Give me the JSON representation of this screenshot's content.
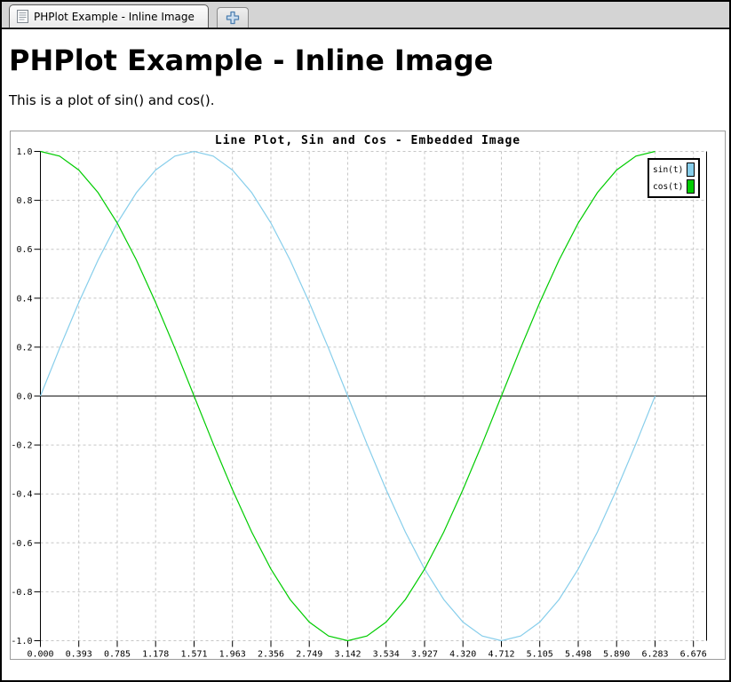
{
  "tabbar": {
    "tab_title": "PHPlot Example - Inline Image",
    "tab_icon": "document-icon",
    "new_tab_icon": "plus-icon"
  },
  "page": {
    "heading": "PHPlot Example - Inline Image",
    "intro": "This is a plot of sin() and cos()."
  },
  "chart_data": {
    "type": "line",
    "title": "Line Plot, Sin and Cos - Embedded Image",
    "xlabel": "",
    "ylabel": "",
    "xlim": [
      0,
      6.81
    ],
    "ylim": [
      -1,
      1
    ],
    "grid": true,
    "grid_style": "dashed",
    "legend_position": "top-right",
    "background_color": "#ffffff",
    "x": [
      0.0,
      0.1963,
      0.3927,
      0.589,
      0.7854,
      0.9817,
      1.1781,
      1.3744,
      1.5708,
      1.7671,
      1.9635,
      2.1598,
      2.3562,
      2.5525,
      2.7489,
      2.9452,
      3.1416,
      3.3379,
      3.5343,
      3.7306,
      3.927,
      4.1233,
      4.3197,
      4.516,
      4.7124,
      4.9087,
      5.1051,
      5.3014,
      5.4978,
      5.6941,
      5.8905,
      6.0868,
      6.2832
    ],
    "series": [
      {
        "name": "sin(t)",
        "color": "#87CEEB",
        "values": [
          0.0,
          0.1951,
          0.3827,
          0.5556,
          0.7071,
          0.8315,
          0.9239,
          0.9808,
          1.0,
          0.9808,
          0.9239,
          0.8315,
          0.7071,
          0.5556,
          0.3827,
          0.1951,
          0.0,
          -0.1951,
          -0.3827,
          -0.5556,
          -0.7071,
          -0.8315,
          -0.9239,
          -0.9808,
          -1.0,
          -0.9808,
          -0.9239,
          -0.8315,
          -0.7071,
          -0.5556,
          -0.3827,
          -0.1951,
          0.0
        ]
      },
      {
        "name": "cos(t)",
        "color": "#00CC00",
        "values": [
          1.0,
          0.9808,
          0.9239,
          0.8315,
          0.7071,
          0.5556,
          0.3827,
          0.1951,
          0.0,
          -0.1951,
          -0.3827,
          -0.5556,
          -0.7071,
          -0.8315,
          -0.9239,
          -0.9808,
          -1.0,
          -0.9808,
          -0.9239,
          -0.8315,
          -0.7071,
          -0.5556,
          -0.3827,
          -0.1951,
          0.0,
          0.1951,
          0.3827,
          0.5556,
          0.7071,
          0.8315,
          0.9239,
          0.9808,
          1.0
        ]
      }
    ],
    "x_tick_values": [
      0.0,
      0.3927,
      0.7854,
      1.1781,
      1.5708,
      1.9635,
      2.3562,
      2.7489,
      3.1416,
      3.5343,
      3.927,
      4.3197,
      4.7124,
      5.1051,
      5.4978,
      5.8905,
      6.2832,
      6.6759
    ],
    "x_tick_labels": [
      "0.000",
      "0.393",
      "0.785",
      "1.178",
      "1.571",
      "1.963",
      "2.356",
      "2.749",
      "3.142",
      "3.534",
      "3.927",
      "4.320",
      "4.712",
      "5.105",
      "5.498",
      "5.890",
      "6.283",
      "6.676"
    ],
    "y_tick_values": [
      1.0,
      0.8,
      0.6,
      0.4,
      0.2,
      0.0,
      -0.2,
      -0.4,
      -0.6,
      -0.8,
      -1.0
    ],
    "y_tick_labels": [
      "1.0",
      "0.8",
      "0.6",
      "0.4",
      "0.2",
      "0.0",
      "-0.2",
      "-0.4",
      "-0.6",
      "-0.8",
      "-1.0"
    ]
  }
}
